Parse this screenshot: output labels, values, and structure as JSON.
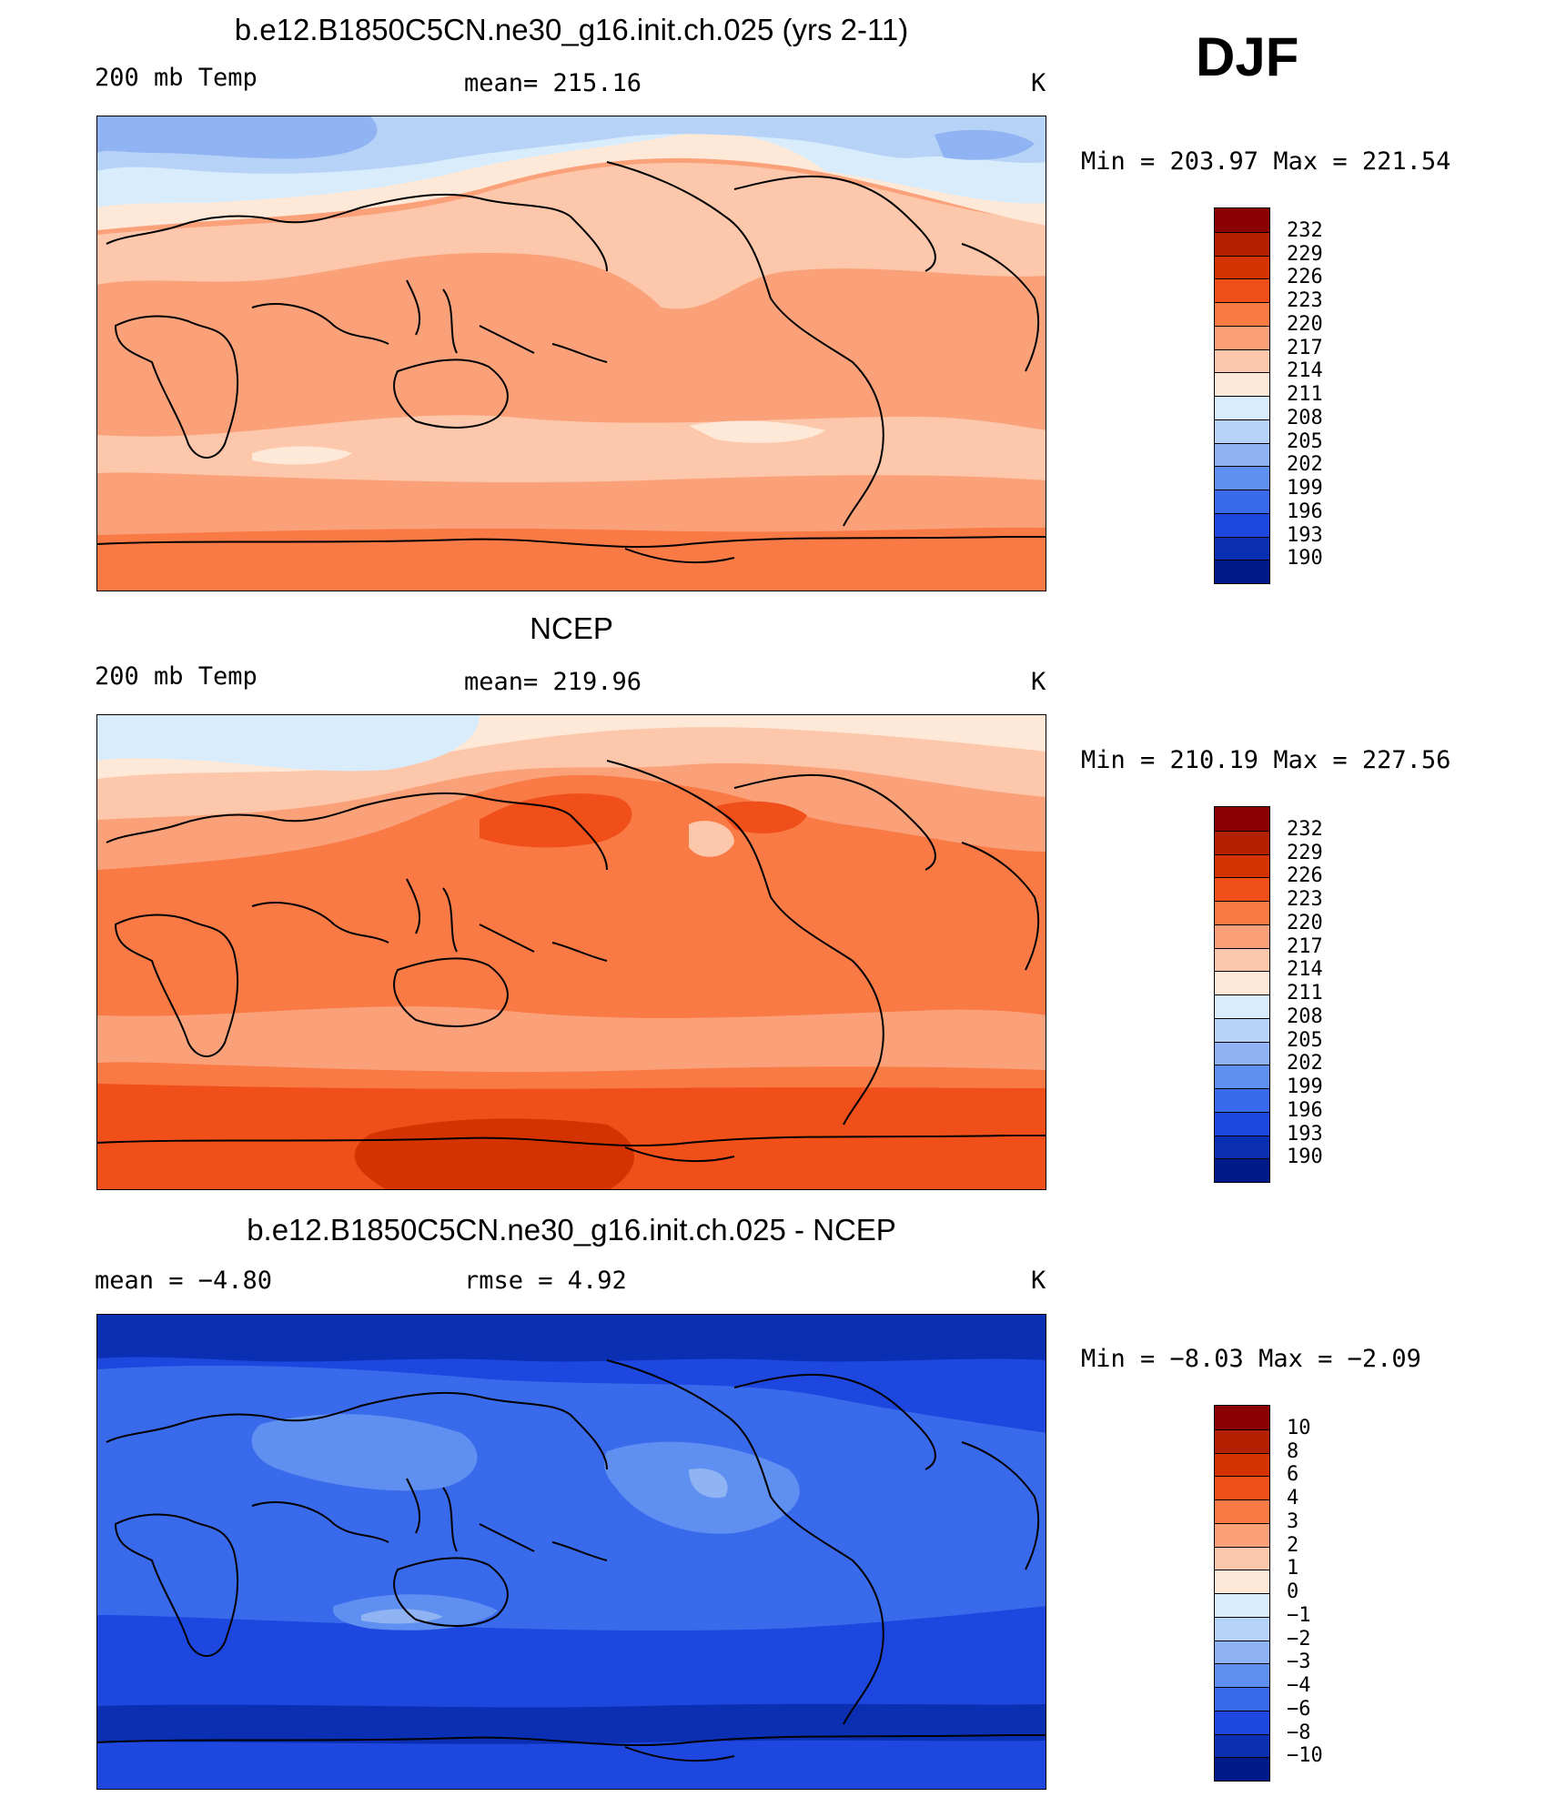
{
  "season": "DJF",
  "panels": [
    {
      "title": "b.e12.B1850C5CN.ne30_g16.init.ch.025 (yrs 2-11)",
      "left_label": "200 mb Temp",
      "center_label": "mean= 215.16",
      "units": "K",
      "minmax": "Min = 203.97 Max = 221.54",
      "field": "model temperature"
    },
    {
      "title": "NCEP",
      "left_label": "200 mb Temp",
      "center_label": "mean= 219.96",
      "units": "K",
      "minmax": "Min = 210.19 Max = 227.56",
      "field": "observed temperature"
    },
    {
      "title": "b.e12.B1850C5CN.ne30_g16.init.ch.025 - NCEP",
      "left_label": "mean =  −4.80",
      "center_label": "rmse =   4.92",
      "units": "K",
      "minmax": "Min =  −8.03 Max =  −2.09",
      "field": "difference"
    }
  ],
  "colorbars": {
    "temperature": {
      "labels": [
        "232",
        "229",
        "226",
        "223",
        "220",
        "217",
        "214",
        "211",
        "208",
        "205",
        "202",
        "199",
        "196",
        "193",
        "190"
      ],
      "colors": [
        "#8b0000",
        "#b22000",
        "#d43300",
        "#f04f1a",
        "#fa7a46",
        "#fba17a",
        "#fcc7aa",
        "#fee9d8",
        "#d8ecfb",
        "#b6d2f7",
        "#8fb3f3",
        "#5f8ff0",
        "#3a6aec",
        "#1d47df",
        "#0b2fb3",
        "#001a8a"
      ]
    },
    "difference": {
      "labels": [
        "10",
        "8",
        "6",
        "4",
        "3",
        "2",
        "1",
        "0",
        "−1",
        "−2",
        "−3",
        "−4",
        "−6",
        "−8",
        "−10"
      ],
      "colors": [
        "#8b0000",
        "#b22000",
        "#d43300",
        "#f04f1a",
        "#fa7a46",
        "#fba17a",
        "#fcc7aa",
        "#fee9d8",
        "#d8ecfb",
        "#b6d2f7",
        "#8fb3f3",
        "#5f8ff0",
        "#3a6aec",
        "#1d47df",
        "#0b2fb3",
        "#001a8a"
      ]
    }
  }
}
